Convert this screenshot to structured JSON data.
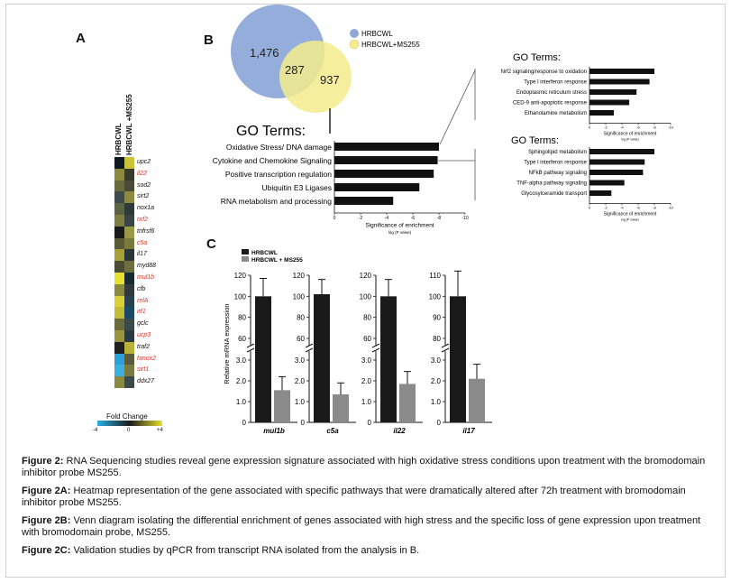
{
  "panel_labels": {
    "a": "A",
    "b": "B",
    "c": "C"
  },
  "heatmap": {
    "column_labels": [
      "HRBCWL",
      "HRBCWL +MS255"
    ],
    "genes": [
      {
        "name": "upc2",
        "highlight": false
      },
      {
        "name": "il22",
        "highlight": true
      },
      {
        "name": "sod2",
        "highlight": false
      },
      {
        "name": "sirt2",
        "highlight": false
      },
      {
        "name": "nox1a",
        "highlight": false
      },
      {
        "name": "nrf2",
        "highlight": true
      },
      {
        "name": "tnfrsf6",
        "highlight": false
      },
      {
        "name": "c5a",
        "highlight": true
      },
      {
        "name": "il17",
        "highlight": false
      },
      {
        "name": "myd88",
        "highlight": false
      },
      {
        "name": "mul1b",
        "highlight": true
      },
      {
        "name": "cfb",
        "highlight": false
      },
      {
        "name": "relA",
        "highlight": true
      },
      {
        "name": "irf1",
        "highlight": true
      },
      {
        "name": "gclc",
        "highlight": false
      },
      {
        "name": "ucp3",
        "highlight": true
      },
      {
        "name": "traf2",
        "highlight": false
      },
      {
        "name": "hmox2",
        "highlight": true
      },
      {
        "name": "sirt1",
        "highlight": true
      },
      {
        "name": "ddx27",
        "highlight": false
      }
    ],
    "colors": [
      [
        "#101826",
        "#c9c23a"
      ],
      [
        "#8a8a3a",
        "#3a3a2a"
      ],
      [
        "#6a6a3a",
        "#4a4a36"
      ],
      [
        "#3e4a4e",
        "#8a8a44"
      ],
      [
        "#5b6340",
        "#2e3a3a"
      ],
      [
        "#7e7e40",
        "#3a4444"
      ],
      [
        "#1a1a1a",
        "#9a9a46"
      ],
      [
        "#5a5a36",
        "#7a7a3c"
      ],
      [
        "#a6a038",
        "#2a3638"
      ],
      [
        "#4a4a32",
        "#6e6e3e"
      ],
      [
        "#e6e030",
        "#1a2a32"
      ],
      [
        "#8a8a3e",
        "#303a38"
      ],
      [
        "#d8d034",
        "#2a4250"
      ],
      [
        "#c2bc34",
        "#1a4a66"
      ],
      [
        "#6a6a3a",
        "#3a4a4a"
      ],
      [
        "#9a943a",
        "#2a3a40"
      ],
      [
        "#202020",
        "#b8b23c"
      ],
      [
        "#2aa0d8",
        "#5a5a3a"
      ],
      [
        "#3ab0e0",
        "#7a7a40"
      ],
      [
        "#8a8a3e",
        "#3a4a48"
      ]
    ],
    "legend": {
      "title": "Fold Change",
      "ticks": [
        "-4",
        "0",
        "+4"
      ]
    }
  },
  "venn": {
    "left_count": "1,476",
    "overlap_count": "287",
    "right_count": "937",
    "legend": [
      {
        "label": "HRBCWL",
        "color": "#8fa9d8"
      },
      {
        "label": "HRBCWL+MS255",
        "color": "#f3ec8c"
      }
    ]
  },
  "go_main": {
    "title": "GO Terms:",
    "xlabel": "Significance of enrichment",
    "xsublabel": "log (P value)",
    "ticks": [
      "0",
      "-2",
      "-4",
      "-6",
      "-8",
      "-10"
    ],
    "terms": [
      {
        "label": "Oxidative Stress/ DNA damage",
        "value": -8.0
      },
      {
        "label": "Cytokine and Chemokine Signaling",
        "value": -7.9
      },
      {
        "label": "Positive transcription regulation",
        "value": -7.6
      },
      {
        "label": "Ubiquitin E3 Ligases",
        "value": -6.5
      },
      {
        "label": "RNA metabolism and processing",
        "value": -4.5
      }
    ]
  },
  "go_top": {
    "title": "GO Terms:",
    "xlabel": "Significance of enrichment",
    "xsublabel": "log (P value)",
    "ticks": [
      "0",
      "-2",
      "-4",
      "-6",
      "-8",
      "-10"
    ],
    "terms": [
      {
        "label": "Nrf2 signaling/response to oxidation",
        "value": -8.0
      },
      {
        "label": "Type I interferon response",
        "value": -7.4
      },
      {
        "label": "Endoplasmic reticulum stress",
        "value": -5.8
      },
      {
        "label": "CED-9 anti-apoptotic response",
        "value": -4.9
      },
      {
        "label": "Ethanolamine metabolism",
        "value": -3.0
      }
    ]
  },
  "go_bottom": {
    "title": "GO Terms:",
    "xlabel": "Significance of enrichment",
    "xsublabel": "log (P value)",
    "ticks": [
      "0",
      "-2",
      "-4",
      "-6",
      "-8",
      "-10"
    ],
    "terms": [
      {
        "label": "Sphingolipid metabolism",
        "value": -8.0
      },
      {
        "label": "Type I interferon response",
        "value": -6.8
      },
      {
        "label": "NFkB pathway signaling",
        "value": -6.6
      },
      {
        "label": "TNF-alpha pathway signaling",
        "value": -4.3
      },
      {
        "label": "Glycosylceramide transport",
        "value": -2.7
      }
    ]
  },
  "chart_data": [
    {
      "type": "bar",
      "title": "",
      "categories": [
        "mul1b",
        "c5a",
        "il22",
        "il17"
      ],
      "ylabel": "Relative mRNA expression",
      "series": [
        {
          "name": "HRBCWL",
          "values": [
            100,
            102,
            100,
            100
          ],
          "errors": [
            17,
            14,
            16,
            12
          ],
          "color": "#1a1a1a"
        },
        {
          "name": "HRBCWL + MS255",
          "values": [
            1.55,
            1.35,
            1.85,
            2.1
          ],
          "errors": [
            0.65,
            0.55,
            0.6,
            0.7
          ],
          "color": "#8a8a8a"
        }
      ],
      "axes": [
        {
          "upper_ticks": [
            "120",
            "100",
            "80",
            "60"
          ],
          "lower_ticks": [
            "3.0",
            "2.0",
            "1.0",
            "0"
          ],
          "upper_range": [
            60,
            120
          ]
        },
        {
          "upper_ticks": [
            "120",
            "100",
            "80",
            "60"
          ],
          "lower_ticks": [
            "3.0",
            "2.0",
            "1.0",
            "0"
          ],
          "upper_range": [
            60,
            120
          ]
        },
        {
          "upper_ticks": [
            "120",
            "100",
            "80",
            "60"
          ],
          "lower_ticks": [
            "3.0",
            "2.0",
            "1.0",
            "0"
          ],
          "upper_range": [
            60,
            120
          ]
        },
        {
          "upper_ticks": [
            "110",
            "100",
            "90",
            "80"
          ],
          "lower_ticks": [
            "3.0",
            "2.0",
            "1.0",
            "0"
          ],
          "upper_range": [
            80,
            110
          ]
        }
      ],
      "lower_range": [
        0,
        3
      ],
      "legend_placement": "top-left"
    }
  ],
  "captions": [
    {
      "label": "Figure 2:",
      "text": " RNA Sequencing studies reveal gene expression signature associated with high oxidative stress conditions upon treatment with the bromodomain inhibitor probe MS255."
    },
    {
      "label": "Figure 2A:",
      "text": " Heatmap representation of the gene associated with specific pathways that were dramatically altered after 72h treatment with bromodomain inhibitor probe MS255."
    },
    {
      "label": "Figure 2B:",
      "text": " Venn diagram isolating the differential enrichment of genes associated with high stress and the specific loss of gene expression upon treatment with bromodomain probe, MS255."
    },
    {
      "label": "Figure 2C:",
      "text": "  Validation studies by qPCR from transcript RNA isolated from the analysis in B."
    }
  ]
}
